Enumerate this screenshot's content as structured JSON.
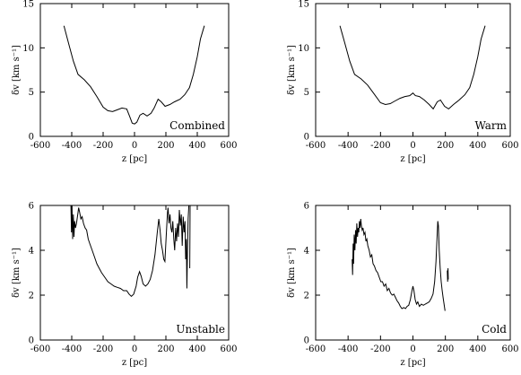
{
  "chart_data": [
    {
      "type": "line",
      "panel_label": "Combined",
      "xlabel": "z [pc]",
      "ylabel": "δv [km s⁻¹]",
      "xlim": [
        -600,
        600
      ],
      "ylim": [
        0,
        15
      ],
      "xticks": [
        -600,
        -400,
        -200,
        0,
        200,
        400,
        600
      ],
      "yticks": [
        0,
        5,
        10,
        15
      ],
      "series": [
        {
          "segments": [
            [
              [
                -450,
                12.5
              ],
              [
                -420,
                10.5
              ],
              [
                -390,
                8.5
              ],
              [
                -360,
                7.0
              ],
              [
                -320,
                6.4
              ],
              [
                -280,
                5.6
              ],
              [
                -240,
                4.5
              ],
              [
                -200,
                3.3
              ],
              [
                -170,
                2.9
              ],
              [
                -140,
                2.8
              ],
              [
                -110,
                3.0
              ],
              [
                -80,
                3.2
              ],
              [
                -50,
                3.1
              ],
              [
                -30,
                2.2
              ],
              [
                -15,
                1.5
              ],
              [
                0,
                1.4
              ],
              [
                15,
                1.6
              ],
              [
                35,
                2.4
              ],
              [
                55,
                2.6
              ],
              [
                80,
                2.3
              ],
              [
                105,
                2.6
              ],
              [
                125,
                3.2
              ],
              [
                150,
                4.2
              ],
              [
                170,
                3.9
              ],
              [
                195,
                3.4
              ],
              [
                225,
                3.6
              ],
              [
                255,
                3.9
              ],
              [
                290,
                4.2
              ],
              [
                320,
                4.7
              ],
              [
                350,
                5.5
              ],
              [
                375,
                7.0
              ],
              [
                400,
                9.0
              ],
              [
                420,
                11.0
              ],
              [
                445,
                12.5
              ]
            ]
          ]
        }
      ]
    },
    {
      "type": "line",
      "panel_label": "Warm",
      "xlabel": "z [pc]",
      "ylabel": "δv [km s⁻¹]",
      "xlim": [
        -600,
        600
      ],
      "ylim": [
        0,
        15
      ],
      "xticks": [
        -600,
        -400,
        -200,
        0,
        200,
        400,
        600
      ],
      "yticks": [
        0,
        5,
        10,
        15
      ],
      "series": [
        {
          "segments": [
            [
              [
                -450,
                12.5
              ],
              [
                -420,
                10.5
              ],
              [
                -390,
                8.5
              ],
              [
                -360,
                7.0
              ],
              [
                -320,
                6.5
              ],
              [
                -280,
                5.8
              ],
              [
                -240,
                4.8
              ],
              [
                -200,
                3.8
              ],
              [
                -170,
                3.6
              ],
              [
                -140,
                3.7
              ],
              [
                -110,
                4.0
              ],
              [
                -80,
                4.3
              ],
              [
                -50,
                4.5
              ],
              [
                -20,
                4.6
              ],
              [
                0,
                4.9
              ],
              [
                15,
                4.6
              ],
              [
                40,
                4.5
              ],
              [
                70,
                4.1
              ],
              [
                100,
                3.6
              ],
              [
                125,
                3.1
              ],
              [
                150,
                3.9
              ],
              [
                170,
                4.1
              ],
              [
                195,
                3.4
              ],
              [
                220,
                3.1
              ],
              [
                250,
                3.6
              ],
              [
                285,
                4.1
              ],
              [
                320,
                4.7
              ],
              [
                350,
                5.5
              ],
              [
                375,
                7.0
              ],
              [
                400,
                9.0
              ],
              [
                420,
                11.0
              ],
              [
                445,
                12.5
              ]
            ]
          ]
        }
      ]
    },
    {
      "type": "line",
      "panel_label": "Unstable",
      "xlabel": "z [pc]",
      "ylabel": "δv [km s⁻¹]",
      "xlim": [
        -600,
        600
      ],
      "ylim": [
        0,
        6
      ],
      "xticks": [
        -600,
        -400,
        -200,
        0,
        200,
        400,
        600
      ],
      "yticks": [
        0,
        2,
        4,
        6
      ],
      "series": [
        {
          "segments": [
            [
              [
                -405,
                6.0
              ],
              [
                -402,
                4.8
              ],
              [
                -398,
                6.0
              ],
              [
                -394,
                4.5
              ],
              [
                -390,
                5.6
              ],
              [
                -386,
                4.6
              ],
              [
                -382,
                5.3
              ],
              [
                -376,
                5.0
              ],
              [
                -370,
                5.2
              ],
              [
                -362,
                5.6
              ],
              [
                -356,
                5.9
              ],
              [
                -350,
                5.7
              ],
              [
                -342,
                5.4
              ],
              [
                -334,
                5.5
              ],
              [
                -325,
                5.2
              ],
              [
                -315,
                5.0
              ],
              [
                -305,
                4.9
              ],
              [
                -295,
                4.5
              ],
              [
                -285,
                4.3
              ],
              [
                -270,
                4.0
              ],
              [
                -255,
                3.7
              ],
              [
                -240,
                3.4
              ],
              [
                -225,
                3.2
              ],
              [
                -210,
                3.0
              ],
              [
                -190,
                2.8
              ],
              [
                -170,
                2.6
              ],
              [
                -150,
                2.5
              ],
              [
                -130,
                2.4
              ],
              [
                -110,
                2.35
              ],
              [
                -90,
                2.3
              ],
              [
                -70,
                2.2
              ],
              [
                -50,
                2.2
              ],
              [
                -35,
                2.05
              ],
              [
                -20,
                1.95
              ],
              [
                -5,
                2.05
              ],
              [
                10,
                2.4
              ],
              [
                20,
                2.8
              ],
              [
                32,
                3.05
              ],
              [
                42,
                2.85
              ],
              [
                55,
                2.5
              ],
              [
                70,
                2.4
              ],
              [
                85,
                2.5
              ],
              [
                100,
                2.7
              ],
              [
                115,
                3.1
              ],
              [
                130,
                3.8
              ],
              [
                145,
                4.8
              ],
              [
                155,
                5.4
              ],
              [
                163,
                4.9
              ],
              [
                170,
                4.3
              ],
              [
                178,
                4.0
              ],
              [
                186,
                3.6
              ],
              [
                194,
                3.5
              ],
              [
                202,
                4.6
              ],
              [
                210,
                5.7
              ],
              [
                214,
                5.9
              ],
              [
                220,
                5.2
              ],
              [
                226,
                5.6
              ],
              [
                232,
                5.0
              ],
              [
                238,
                4.8
              ],
              [
                244,
                5.3
              ],
              [
                250,
                4.5
              ],
              [
                256,
                4.0
              ],
              [
                262,
                5.0
              ],
              [
                268,
                4.4
              ],
              [
                274,
                5.2
              ],
              [
                280,
                4.6
              ],
              [
                286,
                5.8
              ],
              [
                292,
                5.1
              ],
              [
                298,
                5.6
              ],
              [
                304,
                4.2
              ],
              [
                310,
                5.5
              ],
              [
                316,
                4.8
              ],
              [
                322,
                5.3
              ],
              [
                326,
                3.6
              ],
              [
                330,
                4.5
              ],
              [
                334,
                2.3
              ],
              [
                338,
                4.0
              ],
              [
                342,
                5.4
              ],
              [
                346,
                6.0
              ]
            ],
            [
              [
                352,
                3.2
              ],
              [
                354,
                6.0
              ],
              [
                358,
                6.0
              ]
            ]
          ]
        }
      ]
    },
    {
      "type": "line",
      "panel_label": "Cold",
      "xlabel": "z [pc]",
      "ylabel": "δv [km s⁻¹]",
      "xlim": [
        -600,
        600
      ],
      "ylim": [
        0,
        6
      ],
      "xticks": [
        -600,
        -400,
        -200,
        0,
        200,
        400,
        600
      ],
      "yticks": [
        0,
        2,
        4,
        6
      ],
      "series": [
        {
          "segments": [
            [
              [
                -375,
                3.6
              ],
              [
                -372,
                2.9
              ],
              [
                -369,
                4.3
              ],
              [
                -366,
                3.4
              ],
              [
                -362,
                4.7
              ],
              [
                -358,
                4.0
              ],
              [
                -354,
                4.9
              ],
              [
                -350,
                4.3
              ],
              [
                -346,
                5.2
              ],
              [
                -342,
                4.6
              ],
              [
                -338,
                5.0
              ],
              [
                -334,
                4.8
              ],
              [
                -330,
                5.3
              ],
              [
                -326,
                5.0
              ],
              [
                -322,
                5.4
              ],
              [
                -318,
                5.1
              ],
              [
                -313,
                4.9
              ],
              [
                -308,
                5.0
              ],
              [
                -302,
                4.7
              ],
              [
                -296,
                4.8
              ],
              [
                -290,
                4.4
              ],
              [
                -284,
                4.5
              ],
              [
                -278,
                4.2
              ],
              [
                -270,
                4.0
              ],
              [
                -262,
                3.7
              ],
              [
                -254,
                3.8
              ],
              [
                -246,
                3.4
              ],
              [
                -238,
                3.3
              ],
              [
                -228,
                3.1
              ],
              [
                -218,
                3.0
              ],
              [
                -208,
                2.8
              ],
              [
                -198,
                2.6
              ],
              [
                -188,
                2.6
              ],
              [
                -178,
                2.4
              ],
              [
                -168,
                2.5
              ],
              [
                -158,
                2.2
              ],
              [
                -148,
                2.3
              ],
              [
                -138,
                2.1
              ],
              [
                -128,
                2.0
              ],
              [
                -118,
                2.05
              ],
              [
                -108,
                1.9
              ],
              [
                -98,
                1.75
              ],
              [
                -88,
                1.65
              ],
              [
                -78,
                1.5
              ],
              [
                -68,
                1.4
              ],
              [
                -56,
                1.45
              ],
              [
                -46,
                1.4
              ],
              [
                -36,
                1.5
              ],
              [
                -26,
                1.55
              ],
              [
                -16,
                1.8
              ],
              [
                -6,
                2.2
              ],
              [
                0,
                2.4
              ],
              [
                6,
                2.2
              ],
              [
                14,
                1.8
              ],
              [
                22,
                1.6
              ],
              [
                30,
                1.7
              ],
              [
                40,
                1.5
              ],
              [
                52,
                1.6
              ],
              [
                64,
                1.55
              ],
              [
                76,
                1.6
              ],
              [
                88,
                1.65
              ],
              [
                100,
                1.7
              ],
              [
                112,
                1.85
              ],
              [
                124,
                2.05
              ],
              [
                134,
                2.6
              ],
              [
                142,
                3.5
              ],
              [
                148,
                4.5
              ],
              [
                153,
                5.3
              ],
              [
                157,
                5.1
              ],
              [
                162,
                4.0
              ],
              [
                168,
                3.2
              ],
              [
                174,
                2.6
              ],
              [
                180,
                2.2
              ],
              [
                186,
                1.9
              ],
              [
                192,
                1.6
              ],
              [
                198,
                1.3
              ]
            ],
            [
              [
                212,
                3.1
              ],
              [
                214,
                2.6
              ],
              [
                216,
                3.2
              ],
              [
                218,
                2.7
              ]
            ]
          ]
        }
      ]
    }
  ]
}
